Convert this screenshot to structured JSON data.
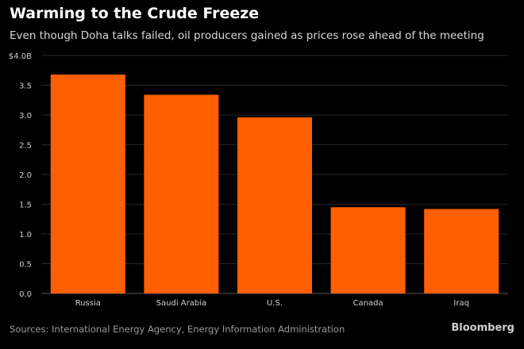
{
  "chart_data": {
    "type": "bar",
    "title": "Warming to the Crude Freeze",
    "subtitle": "Even though Doha talks failed, oil producers gained as prices rose ahead of the meeting",
    "categories": [
      "Russia",
      "Saudi Arabia",
      "U.S.",
      "Canada",
      "Iraq"
    ],
    "values": [
      3.68,
      3.34,
      2.96,
      1.45,
      1.42
    ],
    "ylim": [
      0,
      4.0
    ],
    "yticks": [
      "0.0",
      "0.5",
      "1.0",
      "1.5",
      "2.0",
      "2.5",
      "3.0",
      "3.5",
      "$4.0B"
    ],
    "ytick_values": [
      0,
      0.5,
      1.0,
      1.5,
      2.0,
      2.5,
      3.0,
      3.5,
      4.0
    ],
    "grid": true,
    "bar_color": "#ff5f00",
    "source": "Sources: International Energy Agency, Energy Information Administration",
    "brand": "Bloomberg"
  }
}
